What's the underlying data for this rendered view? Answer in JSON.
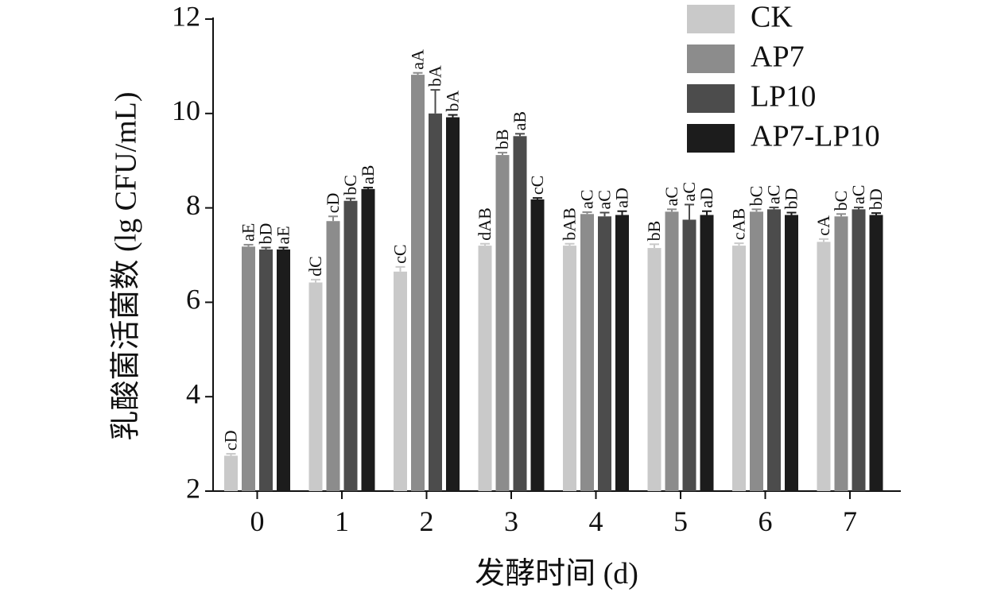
{
  "colors": {
    "CK": "#c9c9c9",
    "AP7": "#8c8c8c",
    "LP10": "#4c4c4c",
    "AP7-LP10": "#1c1c1c",
    "axis": "#111111"
  },
  "chart_data": {
    "type": "bar",
    "title": "",
    "xlabel": "发酵时间 (d)",
    "ylabel": "乳酸菌活菌数 (lg CFU/mL)",
    "ylim": [
      2,
      12
    ],
    "yticks": [
      "2",
      "4",
      "6",
      "8",
      "10",
      "12"
    ],
    "categories": [
      "0",
      "1",
      "2",
      "3",
      "4",
      "5",
      "6",
      "7"
    ],
    "legend_position": "top-right",
    "grid": false,
    "series": [
      {
        "name": "CK",
        "values": [
          2.75,
          6.42,
          6.65,
          7.2,
          7.2,
          7.15,
          7.2,
          7.28
        ],
        "errors": [
          0.04,
          0.06,
          0.1,
          0.04,
          0.04,
          0.08,
          0.05,
          0.06
        ],
        "labels": [
          "cD",
          "dC",
          "cC",
          "dAB",
          "bAB",
          "bB",
          "cAB",
          "cA"
        ]
      },
      {
        "name": "AP7",
        "values": [
          7.18,
          7.72,
          10.82,
          9.12,
          7.87,
          7.92,
          7.92,
          7.82
        ],
        "errors": [
          0.04,
          0.1,
          0.04,
          0.05,
          0.04,
          0.05,
          0.05,
          0.05
        ],
        "labels": [
          "aE",
          "cD",
          "aA",
          "bB",
          "aC",
          "aC",
          "bC",
          "bC"
        ]
      },
      {
        "name": "LP10",
        "values": [
          7.12,
          8.15,
          10.0,
          9.52,
          7.82,
          7.75,
          7.97,
          7.97
        ],
        "errors": [
          0.04,
          0.05,
          0.5,
          0.05,
          0.08,
          0.32,
          0.04,
          0.04
        ],
        "labels": [
          "bD",
          "bC",
          "bA",
          "aB",
          "aC",
          "aC",
          "aC",
          "aC"
        ]
      },
      {
        "name": "AP7-LP10",
        "values": [
          7.12,
          8.4,
          9.92,
          8.18,
          7.85,
          7.85,
          7.85,
          7.85
        ],
        "errors": [
          0.04,
          0.03,
          0.05,
          0.03,
          0.08,
          0.08,
          0.05,
          0.04
        ],
        "labels": [
          "aE",
          "aB",
          "bA",
          "cC",
          "aD",
          "aD",
          "bD",
          "bD"
        ]
      }
    ]
  }
}
